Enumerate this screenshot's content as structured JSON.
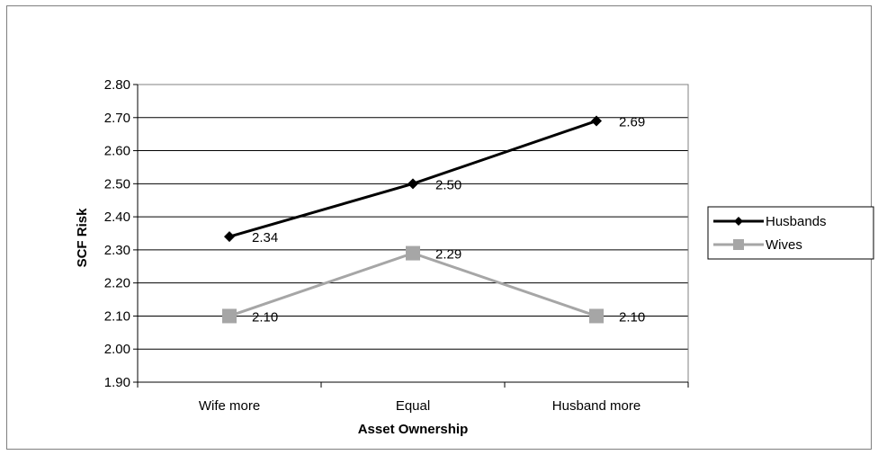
{
  "chart_data": {
    "type": "line",
    "title": "",
    "xlabel": "Asset Ownership",
    "ylabel": "SCF Risk",
    "categories": [
      "Wife more",
      "Equal",
      "Husband more"
    ],
    "ylim": [
      1.9,
      2.8
    ],
    "yticks": [
      "1.90",
      "2.00",
      "2.10",
      "2.20",
      "2.30",
      "2.40",
      "2.50",
      "2.60",
      "2.70",
      "2.80"
    ],
    "grid": true,
    "legend_position": "right",
    "series": [
      {
        "name": "Husbands",
        "values": [
          2.34,
          2.5,
          2.69
        ],
        "labels": [
          "2.34",
          "2.50",
          "2.69"
        ],
        "color": "#000000",
        "marker": "diamond"
      },
      {
        "name": "Wives",
        "values": [
          2.1,
          2.29,
          2.1
        ],
        "labels": [
          "2.10",
          "2.29",
          "2.10"
        ],
        "color": "#a6a6a6",
        "marker": "square"
      }
    ]
  }
}
